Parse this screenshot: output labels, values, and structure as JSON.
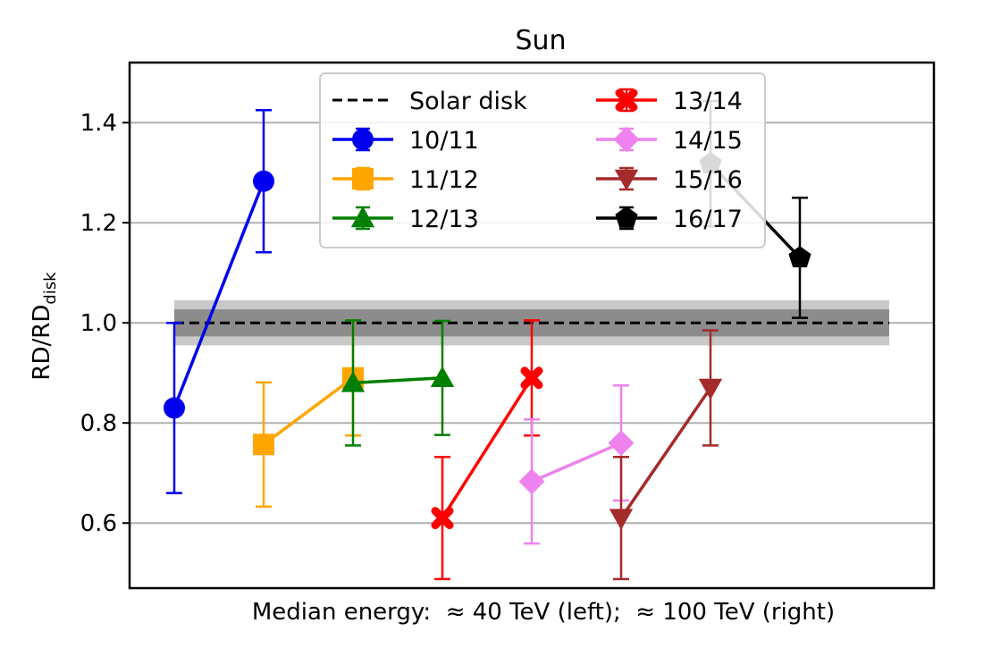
{
  "chart_data": {
    "type": "line",
    "title": "Sun",
    "xlabel": "Median energy:  ≈ 40 TeV (left);  ≈ 100 TeV (right)",
    "ylabel_main": "RD/RD",
    "ylabel_sub": "disk",
    "ylim": [
      0.47,
      1.52
    ],
    "xlim": [
      0,
      9
    ],
    "yticks": [
      "0.6",
      "0.8",
      "1.0",
      "1.2",
      "1.4"
    ],
    "grid": "horizontal",
    "legend_position": "top-center",
    "reference_line": {
      "name": "Solar disk",
      "y": 1.0,
      "band_inner": 0.027,
      "band_outer": 0.045
    },
    "series": [
      {
        "name": "10/11",
        "color": "#0000ee",
        "marker": "circle",
        "points": [
          {
            "x": 0.5,
            "y": 0.83,
            "err": 0.17
          },
          {
            "x": 1.5,
            "y": 1.283,
            "err": 0.142
          }
        ]
      },
      {
        "name": "11/12",
        "color": "#ffa500",
        "marker": "square",
        "points": [
          {
            "x": 1.5,
            "y": 0.757,
            "err": 0.124
          },
          {
            "x": 2.5,
            "y": 0.89,
            "err": 0.115
          }
        ]
      },
      {
        "name": "12/13",
        "color": "#008000",
        "marker": "triangle-up",
        "points": [
          {
            "x": 2.5,
            "y": 0.88,
            "err": 0.125
          },
          {
            "x": 3.5,
            "y": 0.89,
            "err": 0.114
          }
        ]
      },
      {
        "name": "13/14",
        "color": "#ff0000",
        "marker": "x-filled",
        "points": [
          {
            "x": 3.5,
            "y": 0.61,
            "err": 0.122
          },
          {
            "x": 4.5,
            "y": 0.89,
            "err": 0.115
          }
        ]
      },
      {
        "name": "14/15",
        "color": "#ee82ee",
        "marker": "diamond",
        "points": [
          {
            "x": 4.5,
            "y": 0.683,
            "err": 0.124
          },
          {
            "x": 5.5,
            "y": 0.76,
            "err": 0.115
          }
        ]
      },
      {
        "name": "15/16",
        "color": "#a52a2a",
        "marker": "triangle-down",
        "points": [
          {
            "x": 5.5,
            "y": 0.61,
            "err": 0.122
          },
          {
            "x": 6.5,
            "y": 0.87,
            "err": 0.115
          }
        ]
      },
      {
        "name": "16/17",
        "color": "#000000",
        "marker": "pentagon",
        "points": [
          {
            "x": 6.5,
            "y": 1.318,
            "err": 0.125
          },
          {
            "x": 7.5,
            "y": 1.13,
            "err": 0.12
          }
        ]
      }
    ]
  }
}
